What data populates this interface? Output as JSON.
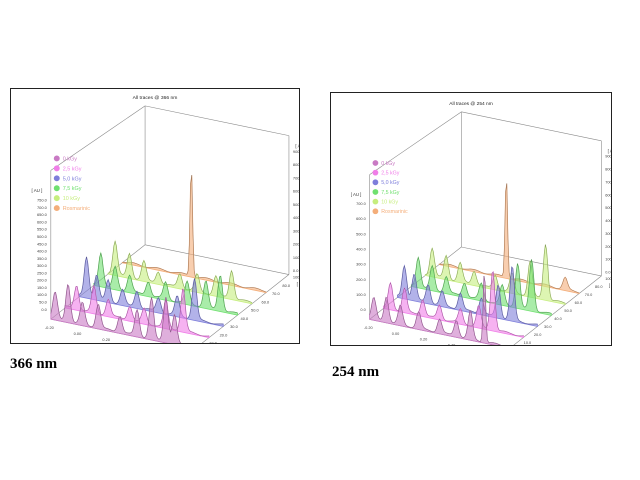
{
  "chart_data": [
    {
      "type": "area",
      "title": "All traces @ 366 nm",
      "caption": "366 nm",
      "x_axis": {
        "label": "[ m ]",
        "ticks": [
          "-0.20",
          "0.00",
          "0.20",
          "0.40",
          "0.60",
          "1.00"
        ]
      },
      "y_axis": {
        "label": "[ AU ]",
        "ticks": [
          "0.0",
          "50.0",
          "100.0",
          "150.0",
          "200.0",
          "250.0",
          "300.0",
          "350.0",
          "400.0",
          "450.0",
          "500.0",
          "550.0",
          "600.0",
          "650.0",
          "700.0",
          "750.0"
        ]
      },
      "z_axis": {
        "label": "[ AU ]",
        "ticks": [
          "0.0",
          "100.0",
          "200.0",
          "300.0",
          "400.0",
          "500.0",
          "600.0",
          "700.0",
          "800.0",
          "900.0"
        ]
      },
      "depth_axis": {
        "label": "[ mm ]",
        "ticks": [
          "0.0",
          "10.0",
          "20.0",
          "30.0",
          "40.0",
          "50.0",
          "60.0",
          "70.0",
          "80.0",
          "100.0"
        ]
      },
      "legend_position": "left",
      "series": [
        {
          "name": "0 kGy",
          "color": "#c97ac4",
          "peaks": [
            [
              0.03,
              0.55
            ],
            [
              0.12,
              0.8
            ],
            [
              0.22,
              0.45
            ],
            [
              0.33,
              0.5
            ],
            [
              0.48,
              0.35
            ],
            [
              0.6,
              0.55
            ],
            [
              0.7,
              0.85
            ],
            [
              0.8,
              0.95
            ],
            [
              0.86,
              0.6
            ]
          ]
        },
        {
          "name": "2,5 kGy",
          "color": "#f07ee8",
          "peaks": [
            [
              0.08,
              0.5
            ],
            [
              0.2,
              0.55
            ],
            [
              0.3,
              0.35
            ],
            [
              0.45,
              0.3
            ],
            [
              0.55,
              0.3
            ],
            [
              0.7,
              0.55
            ],
            [
              0.82,
              0.9
            ]
          ]
        },
        {
          "name": "5,0 kGy",
          "color": "#7e7edb",
          "peaks": [
            [
              0.05,
              0.85
            ],
            [
              0.12,
              0.5
            ],
            [
              0.2,
              0.45
            ],
            [
              0.3,
              0.3
            ],
            [
              0.4,
              0.35
            ],
            [
              0.55,
              0.3
            ],
            [
              0.68,
              0.4
            ],
            [
              0.8,
              0.85
            ]
          ]
        },
        {
          "name": "7,5 kGy",
          "color": "#6fe06f",
          "peaks": [
            [
              0.05,
              0.7
            ],
            [
              0.15,
              0.45
            ],
            [
              0.25,
              0.35
            ],
            [
              0.38,
              0.3
            ],
            [
              0.5,
              0.35
            ],
            [
              0.65,
              0.45
            ],
            [
              0.78,
              0.55
            ],
            [
              0.88,
              0.75
            ]
          ]
        },
        {
          "name": "10 kGy",
          "color": "#c6ee7e",
          "peaks": [
            [
              0.05,
              0.7
            ],
            [
              0.15,
              0.5
            ],
            [
              0.25,
              0.4
            ],
            [
              0.35,
              0.25
            ],
            [
              0.5,
              0.3
            ],
            [
              0.62,
              0.35
            ],
            [
              0.75,
              0.4
            ],
            [
              0.86,
              0.6
            ]
          ]
        },
        {
          "name": "Rosmarinic",
          "color": "#f4ae7a",
          "peaks": [
            [
              0.48,
              2.3
            ]
          ]
        }
      ]
    },
    {
      "type": "area",
      "title": "All traces @ 254 nm",
      "caption": "254 nm",
      "x_axis": {
        "label": "[ m ]",
        "ticks": [
          "-0.20",
          "0.00",
          "0.20",
          "0.40",
          "0.60",
          "1.00"
        ]
      },
      "y_axis": {
        "label": "[ AU ]",
        "ticks": [
          "0.0",
          "100.0",
          "200.0",
          "300.0",
          "400.0",
          "500.0",
          "600.0",
          "700.0"
        ]
      },
      "z_axis": {
        "label": "[ AU ]",
        "ticks": [
          "0.0",
          "100.0",
          "200.0",
          "300.0",
          "400.0",
          "500.0",
          "600.0",
          "700.0",
          "800.0",
          "900.0"
        ]
      },
      "depth_axis": {
        "label": "[ mm ]",
        "ticks": [
          "0.0",
          "10.0",
          "20.0",
          "30.0",
          "40.0",
          "50.0",
          "60.0",
          "70.0",
          "80.0",
          "100.0"
        ]
      },
      "legend_position": "left",
      "series": [
        {
          "name": "0 kGy",
          "color": "#c97ac4",
          "peaks": [
            [
              0.03,
              0.45
            ],
            [
              0.12,
              0.55
            ],
            [
              0.22,
              0.4
            ],
            [
              0.35,
              0.35
            ],
            [
              0.5,
              0.3
            ],
            [
              0.62,
              0.35
            ],
            [
              0.72,
              0.6
            ],
            [
              0.82,
              1.55
            ]
          ]
        },
        {
          "name": "2,5 kGy",
          "color": "#f07ee8",
          "peaks": [
            [
              0.05,
              0.55
            ],
            [
              0.15,
              0.5
            ],
            [
              0.28,
              0.35
            ],
            [
              0.4,
              0.3
            ],
            [
              0.55,
              0.3
            ],
            [
              0.68,
              0.45
            ],
            [
              0.78,
              1.3
            ]
          ]
        },
        {
          "name": "5,0 kGy",
          "color": "#7e7edb",
          "peaks": [
            [
              0.05,
              0.7
            ],
            [
              0.12,
              0.55
            ],
            [
              0.22,
              0.4
            ],
            [
              0.32,
              0.3
            ],
            [
              0.45,
              0.35
            ],
            [
              0.6,
              0.35
            ],
            [
              0.72,
              0.7
            ],
            [
              0.82,
              1.15
            ]
          ]
        },
        {
          "name": "7,5 kGy",
          "color": "#6fe06f",
          "peaks": [
            [
              0.05,
              0.65
            ],
            [
              0.15,
              0.5
            ],
            [
              0.25,
              0.35
            ],
            [
              0.38,
              0.3
            ],
            [
              0.5,
              0.35
            ],
            [
              0.65,
              0.4
            ],
            [
              0.76,
              0.95
            ],
            [
              0.86,
              1.1
            ]
          ]
        },
        {
          "name": "10 kGy",
          "color": "#c6ee7e",
          "peaks": [
            [
              0.05,
              0.6
            ],
            [
              0.15,
              0.5
            ],
            [
              0.25,
              0.4
            ],
            [
              0.35,
              0.3
            ],
            [
              0.5,
              0.3
            ],
            [
              0.62,
              0.4
            ],
            [
              0.75,
              0.75
            ],
            [
              0.86,
              1.2
            ]
          ]
        },
        {
          "name": "Rosmarinic",
          "color": "#f4ae7a",
          "peaks": [
            [
              0.48,
              2.2
            ],
            [
              0.9,
              0.25
            ]
          ]
        }
      ]
    }
  ]
}
